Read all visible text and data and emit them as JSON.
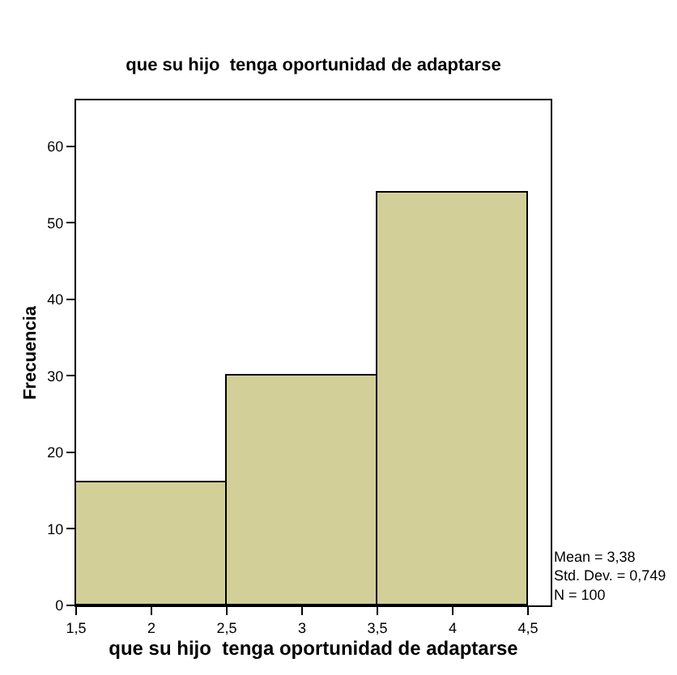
{
  "chart_data": {
    "type": "histogram",
    "title": "que su hijo  tenga oportunidad de adaptarse",
    "xlabel": "que su hijo  tenga oportunidad de adaptarse",
    "ylabel": "Frecuencia",
    "bins": [
      1.5,
      2.5,
      3.5,
      4.5
    ],
    "values": [
      16,
      30,
      54
    ],
    "color": "#d3cf99",
    "xlim": [
      1.5,
      4.65
    ],
    "xticks": [
      {
        "value": 1.5,
        "label": "1,5"
      },
      2,
      {
        "value": 2.5,
        "label": "2,5"
      },
      3,
      {
        "value": 3.5,
        "label": "3,5"
      },
      4,
      {
        "value": 4.5,
        "label": "4,5"
      }
    ],
    "ylim": [
      0,
      66
    ],
    "yticks": [
      0,
      10,
      20,
      30,
      40,
      50,
      60
    ],
    "annotations": [
      "Mean = 3,38\nStd. Dev. = 0,749\nN = 100"
    ]
  }
}
